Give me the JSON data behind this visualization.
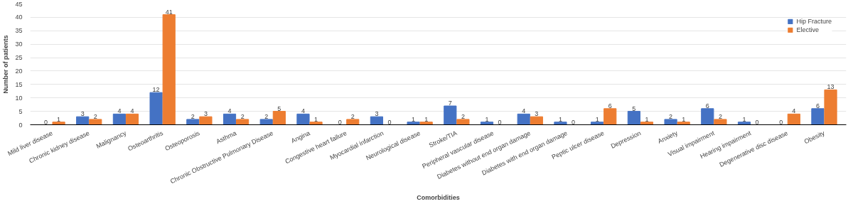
{
  "chart_data": {
    "type": "bar",
    "xlabel": "Comorbidities",
    "ylabel": "Number of patients",
    "categories": [
      "Mild liver disease",
      "Chronic kidney disease",
      "Malignancy",
      "Osteoarthritis",
      "Osteoporosis",
      "Asthma",
      "Chronic Obstructive Pulmonary Disease",
      "Angina",
      "Congestive heart failure",
      "Myocardial infarction",
      "Neurological disease",
      "Stroke/TIA",
      "Peripheral vascular disease",
      "Diabetes without end organ damage",
      "Diabetes with end organ damage",
      "Peptic ulcer disease",
      "Depression",
      "Anxiety",
      "Visual impairment",
      "Hearing impairment",
      "Degenerative disc disease",
      "Obesity"
    ],
    "series": [
      {
        "name": "Hip Fracture",
        "color": "#4472c4",
        "values": [
          0,
          3,
          4,
          12,
          2,
          4,
          2,
          4,
          0,
          3,
          1,
          7,
          1,
          4,
          1,
          1,
          5,
          2,
          6,
          1,
          0,
          6
        ]
      },
      {
        "name": "Elective",
        "color": "#ed7d31",
        "values": [
          1,
          2,
          4,
          41,
          3,
          2,
          5,
          1,
          2,
          0,
          1,
          2,
          0,
          3,
          0,
          6,
          1,
          1,
          2,
          0,
          4,
          13
        ]
      }
    ],
    "ylim": [
      0,
      45
    ],
    "yticks": [
      0,
      5,
      10,
      15,
      20,
      25,
      30,
      35,
      40,
      45
    ],
    "grid": "y",
    "legend": "top right",
    "data_labels": true
  }
}
